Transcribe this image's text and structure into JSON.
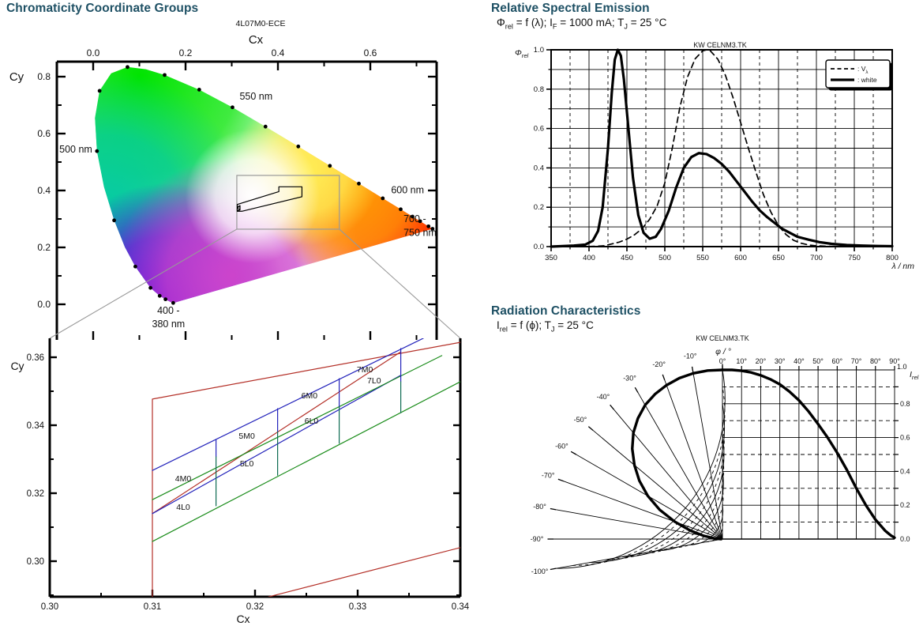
{
  "page": {
    "bg": "#ffffff",
    "heading_color": "#1e5064",
    "watermark_color": "#c6c6c6"
  },
  "sections": {
    "chromaticity": {
      "title": "Chromaticity Coordinate Groups"
    },
    "spectral": {
      "title": "Relative Spectral Emission",
      "formula_parts": [
        [
          "Φ",
          ""
        ],
        [
          "rel",
          "sub"
        ],
        [
          " = f (λ); I",
          ""
        ],
        [
          "F",
          "sub"
        ],
        [
          " = 1000 mA; T",
          ""
        ],
        [
          "J",
          "sub"
        ],
        [
          " = 25 °C",
          ""
        ]
      ]
    },
    "radiation": {
      "title": "Radiation Characteristics",
      "formula_parts": [
        [
          "I",
          ""
        ],
        [
          "rel",
          "sub"
        ],
        [
          " = f (ϕ); T",
          ""
        ],
        [
          "J",
          "sub"
        ],
        [
          " = 25 °C",
          ""
        ]
      ]
    }
  },
  "watermark": "KW CELNM3.TK",
  "chart_data": [
    {
      "id": "cie-diagram",
      "type": "scatter",
      "chart_label": "4L07M0-ECE",
      "xlabel": "Cx",
      "ylabel": "Cy",
      "xlim": [
        -0.079,
        0.744
      ],
      "ylim": [
        -0.125,
        0.852
      ],
      "xticks": {
        "values": [
          0.0,
          0.2,
          0.4,
          0.6
        ],
        "labels": [
          "0.0",
          "0.2",
          "0.4",
          "0.6"
        ]
      },
      "xminor": [
        0.1,
        0.3,
        0.5,
        0.7
      ],
      "yticks": {
        "values": [
          0.0,
          0.2,
          0.4,
          0.6,
          0.8
        ],
        "labels": [
          "0.0",
          "0.2",
          "0.4",
          "0.6",
          "0.8"
        ]
      },
      "yminor": [
        0.1,
        0.3,
        0.5,
        0.7
      ],
      "locus": [
        [
          0.1741,
          0.005
        ],
        [
          0.1733,
          0.0048
        ],
        [
          0.1714,
          0.0051
        ],
        [
          0.1644,
          0.0109
        ],
        [
          0.1566,
          0.0177
        ],
        [
          0.144,
          0.0297
        ],
        [
          0.1241,
          0.0578
        ],
        [
          0.0913,
          0.1327
        ],
        [
          0.0687,
          0.2007
        ],
        [
          0.0454,
          0.295
        ],
        [
          0.0235,
          0.4127
        ],
        [
          0.0082,
          0.5384
        ],
        [
          0.0039,
          0.6548
        ],
        [
          0.0139,
          0.7502
        ],
        [
          0.0389,
          0.812
        ],
        [
          0.0743,
          0.8338
        ],
        [
          0.1142,
          0.8262
        ],
        [
          0.1547,
          0.8059
        ],
        [
          0.2296,
          0.7543
        ],
        [
          0.3016,
          0.6923
        ],
        [
          0.3731,
          0.6245
        ],
        [
          0.4441,
          0.5547
        ],
        [
          0.5125,
          0.4866
        ],
        [
          0.5752,
          0.4242
        ],
        [
          0.627,
          0.3725
        ],
        [
          0.6658,
          0.334
        ],
        [
          0.6915,
          0.3083
        ],
        [
          0.7079,
          0.292
        ],
        [
          0.719,
          0.2809
        ],
        [
          0.726,
          0.274
        ],
        [
          0.7334,
          0.2666
        ],
        [
          0.7347,
          0.2653
        ]
      ],
      "locus_dots": [
        [
          0.1733,
          0.0048
        ],
        [
          0.1566,
          0.0177
        ],
        [
          0.144,
          0.0297
        ],
        [
          0.1241,
          0.0578
        ],
        [
          0.0913,
          0.1327
        ],
        [
          0.0454,
          0.295
        ],
        [
          0.0082,
          0.5384
        ],
        [
          0.0139,
          0.7502
        ],
        [
          0.0743,
          0.8338
        ],
        [
          0.1547,
          0.8059
        ],
        [
          0.2296,
          0.7543
        ],
        [
          0.3016,
          0.6923
        ],
        [
          0.3731,
          0.6245
        ],
        [
          0.4441,
          0.5547
        ],
        [
          0.5125,
          0.4866
        ],
        [
          0.5752,
          0.4242
        ],
        [
          0.627,
          0.3725
        ],
        [
          0.6658,
          0.334
        ],
        [
          0.6915,
          0.3083
        ],
        [
          0.7079,
          0.292
        ],
        [
          0.726,
          0.274
        ],
        [
          0.7347,
          0.2653
        ]
      ],
      "annotations": [
        {
          "text": "550 nm",
          "x": 0.317,
          "y": 0.73,
          "anchor": "start"
        },
        {
          "text": "500 nm",
          "x": -0.002,
          "y": 0.545,
          "anchor": "end"
        },
        {
          "text": "600 nm",
          "x": 0.645,
          "y": 0.402,
          "anchor": "start"
        },
        {
          "text": "700 -",
          "x": 0.672,
          "y": 0.3,
          "anchor": "start"
        },
        {
          "text": "750 nm",
          "x": 0.672,
          "y": 0.252,
          "anchor": "start"
        },
        {
          "text": "400 -",
          "x": 0.163,
          "y": -0.022,
          "anchor": "middle"
        },
        {
          "text": "380 nm",
          "x": 0.163,
          "y": -0.07,
          "anchor": "middle"
        }
      ],
      "zoom_rect": [
        0.311,
        0.264,
        0.533,
        0.453
      ],
      "region_polygon": [
        [
          0.312,
          0.351
        ],
        [
          0.402,
          0.396
        ],
        [
          0.402,
          0.413
        ],
        [
          0.452,
          0.413
        ],
        [
          0.452,
          0.378
        ],
        [
          0.322,
          0.327
        ],
        [
          0.312,
          0.327
        ]
      ],
      "hatch_polygon": [
        [
          0.312,
          0.327
        ],
        [
          0.312,
          0.342
        ],
        [
          0.318,
          0.347
        ],
        [
          0.318,
          0.332
        ]
      ],
      "fill_blobs": [
        {
          "x": 0.1,
          "y": 0.8,
          "r": 0.45,
          "color": "#00e400"
        },
        {
          "x": 0.03,
          "y": 0.32,
          "r": 0.36,
          "color": "#00c9a3"
        },
        {
          "x": 0.16,
          "y": 0.01,
          "r": 0.3,
          "color": "#5500dd"
        },
        {
          "x": 0.3,
          "y": 0.1,
          "r": 0.3,
          "color": "#cc44cc"
        },
        {
          "x": 0.72,
          "y": 0.27,
          "r": 0.32,
          "color": "#ff1a00"
        },
        {
          "x": 0.57,
          "y": 0.4,
          "r": 0.24,
          "color": "#ff9900"
        },
        {
          "x": 0.46,
          "y": 0.47,
          "r": 0.19,
          "color": "#ffee55"
        },
        {
          "x": 0.345,
          "y": 0.38,
          "r": 0.17,
          "color": "#ffffff"
        }
      ]
    },
    {
      "id": "chromaticity-groups",
      "type": "line",
      "xlabel": "Cx",
      "ylabel": "Cy",
      "xlim": [
        0.3,
        0.34
      ],
      "ylim": [
        0.2895,
        0.3655
      ],
      "xticks": {
        "values": [
          0.3,
          0.31,
          0.32,
          0.33,
          0.34
        ],
        "labels": [
          "0.30",
          "0.31",
          "0.32",
          "0.33",
          "0.34"
        ]
      },
      "xminor": [
        0.305,
        0.315,
        0.325,
        0.335
      ],
      "yticks": {
        "values": [
          0.3,
          0.32,
          0.34,
          0.36
        ],
        "labels": [
          "0.30",
          "0.32",
          "0.34",
          "0.36"
        ]
      },
      "yminor": [
        0.29,
        0.31,
        0.33,
        0.35
      ],
      "colors": {
        "red": "#b43028",
        "green": "#1a8c1a",
        "blue": "#2424bb",
        "teal": "#0e6b52"
      },
      "segments": [
        {
          "c": "red",
          "p": [
            [
              0.31,
              0.2895
            ],
            [
              0.31,
              0.3477
            ],
            [
              0.34,
              0.3644
            ]
          ]
        },
        {
          "c": "red",
          "p": [
            [
              0.31,
              0.314
            ],
            [
              0.3342,
              0.3616
            ]
          ]
        },
        {
          "c": "red",
          "p": [
            [
              0.3213,
              0.2895
            ],
            [
              0.34,
              0.304
            ]
          ]
        },
        {
          "c": "blue",
          "p": [
            [
              0.31,
              0.3267
            ],
            [
              0.3364,
              0.3656
            ]
          ]
        },
        {
          "c": "blue",
          "p": [
            [
              0.31,
              0.314
            ],
            [
              0.3342,
              0.3547
            ]
          ]
        },
        {
          "c": "green",
          "p": [
            [
              0.31,
              0.3181
            ],
            [
              0.3382,
              0.3605
            ]
          ]
        },
        {
          "c": "green",
          "p": [
            [
              0.31,
              0.3058
            ],
            [
              0.34,
              0.3528
            ]
          ]
        },
        {
          "c": "blue",
          "p": [
            [
              0.3162,
              0.3358
            ],
            [
              0.3162,
              0.3307
            ]
          ]
        },
        {
          "c": "teal",
          "p": [
            [
              0.3162,
              0.3307
            ],
            [
              0.3162,
              0.3163
            ]
          ]
        },
        {
          "c": "blue",
          "p": [
            [
              0.3222,
              0.3449
            ],
            [
              0.3222,
              0.3381
            ]
          ]
        },
        {
          "c": "teal",
          "p": [
            [
              0.3222,
              0.3381
            ],
            [
              0.3222,
              0.3253
            ]
          ]
        },
        {
          "c": "blue",
          "p": [
            [
              0.3282,
              0.3537
            ],
            [
              0.3282,
              0.3453
            ]
          ]
        },
        {
          "c": "teal",
          "p": [
            [
              0.3282,
              0.3453
            ],
            [
              0.3282,
              0.3347
            ]
          ]
        },
        {
          "c": "blue",
          "p": [
            [
              0.3342,
              0.3626
            ],
            [
              0.3342,
              0.3528
            ]
          ]
        },
        {
          "c": "teal",
          "p": [
            [
              0.3342,
              0.3528
            ],
            [
              0.3342,
              0.3437
            ]
          ]
        }
      ],
      "group_labels": [
        {
          "text": "4M0",
          "x": 0.313,
          "y": 0.3244
        },
        {
          "text": "4L0",
          "x": 0.313,
          "y": 0.316
        },
        {
          "text": "5M0",
          "x": 0.3192,
          "y": 0.337
        },
        {
          "text": "5L0",
          "x": 0.3192,
          "y": 0.3288
        },
        {
          "text": "6M0",
          "x": 0.3253,
          "y": 0.3488
        },
        {
          "text": "6L0",
          "x": 0.3255,
          "y": 0.3414
        },
        {
          "text": "7M0",
          "x": 0.3307,
          "y": 0.3565
        },
        {
          "text": "7L0",
          "x": 0.3316,
          "y": 0.3533
        }
      ]
    },
    {
      "id": "relative-spectral-emission",
      "type": "line",
      "xlabel": "λ / nm",
      "ylabel_parts": [
        [
          "Φ",
          ""
        ],
        [
          "rel",
          "sub"
        ]
      ],
      "xlim": [
        350,
        800
      ],
      "ylim": [
        0,
        1.0
      ],
      "xticks": {
        "values": [
          350,
          400,
          450,
          500,
          550,
          600,
          650,
          700,
          750,
          800
        ],
        "labels": [
          "350",
          "400",
          "450",
          "500",
          "550",
          "600",
          "650",
          "700",
          "750",
          "800"
        ]
      },
      "yticks": {
        "values": [
          0.0,
          0.2,
          0.4,
          0.6,
          0.8,
          1.0
        ],
        "labels": [
          "0.0",
          "0.2",
          "0.4",
          "0.6",
          "0.8",
          "1.0"
        ]
      },
      "grid": {
        "x_solid_step": 50,
        "x_dashed_step": 25,
        "y_solid_step": 0.1
      },
      "legend": [
        {
          "pre": ": V",
          "sub": "λ",
          "style": "dashed"
        },
        {
          "pre": ": white",
          "sub": "",
          "style": "solid"
        }
      ],
      "series": [
        {
          "name": "Vλ",
          "style": "dashed",
          "x": [
            350,
            400,
            420,
            440,
            450,
            460,
            470,
            480,
            490,
            500,
            510,
            520,
            530,
            540,
            550,
            555,
            560,
            570,
            580,
            590,
            600,
            610,
            620,
            630,
            640,
            650,
            660,
            670,
            680,
            690,
            700,
            720,
            750,
            800
          ],
          "y": [
            0,
            0.0004,
            0.004,
            0.023,
            0.038,
            0.06,
            0.091,
            0.139,
            0.208,
            0.323,
            0.503,
            0.71,
            0.862,
            0.954,
            0.995,
            1.0,
            0.995,
            0.952,
            0.87,
            0.757,
            0.631,
            0.503,
            0.381,
            0.265,
            0.175,
            0.107,
            0.061,
            0.032,
            0.017,
            0.0082,
            0.0041,
            0.001,
            0.0001,
            0
          ]
        },
        {
          "name": "white",
          "style": "solid",
          "x": [
            350,
            380,
            395,
            405,
            412,
            418,
            425,
            430,
            434,
            438,
            442,
            446,
            452,
            458,
            465,
            472,
            480,
            488,
            495,
            505,
            515,
            525,
            535,
            545,
            555,
            565,
            575,
            585,
            595,
            605,
            615,
            625,
            635,
            645,
            655,
            665,
            675,
            690,
            705,
            720,
            740,
            760,
            780,
            800
          ],
          "y": [
            0,
            0.005,
            0.01,
            0.03,
            0.08,
            0.2,
            0.5,
            0.78,
            0.95,
            1.0,
            0.97,
            0.85,
            0.6,
            0.35,
            0.16,
            0.07,
            0.04,
            0.05,
            0.09,
            0.18,
            0.3,
            0.4,
            0.455,
            0.475,
            0.47,
            0.45,
            0.42,
            0.38,
            0.33,
            0.28,
            0.23,
            0.185,
            0.15,
            0.12,
            0.09,
            0.07,
            0.05,
            0.035,
            0.022,
            0.014,
            0.008,
            0.005,
            0.003,
            0.002
          ]
        }
      ]
    },
    {
      "id": "radiation-characteristics",
      "type": "line",
      "angle_axis_label": "φ / °",
      "r_axis_label_parts": [
        [
          "I",
          ""
        ],
        [
          "rel",
          "sub"
        ]
      ],
      "r_max_label": "1.0",
      "angle_ticks_pos": {
        "values": [
          0,
          10,
          20,
          30,
          40,
          50,
          60,
          70,
          80,
          90
        ],
        "labels": [
          "0°",
          "10°",
          "20°",
          "30°",
          "40°",
          "50°",
          "60°",
          "70°",
          "80°",
          "90°"
        ]
      },
      "angle_ticks_neg": {
        "values": [
          -10,
          -20,
          -30,
          -40,
          -50,
          -60,
          -70,
          -80,
          -90,
          -100
        ],
        "labels": [
          "-10°",
          "-20°",
          "-30°",
          "-40°",
          "-50°",
          "-60°",
          "-70°",
          "-80°",
          "-90°",
          "-100°"
        ]
      },
      "r_ticks": {
        "values": [
          0.8,
          0.6,
          0.4,
          0.2,
          0.0
        ],
        "labels": [
          "0.8",
          "0.6",
          "0.4",
          "0.2",
          "0.0"
        ]
      },
      "grid": {
        "r_solid": [
          0.2,
          0.4,
          0.6,
          0.8,
          1.0
        ],
        "r_dashed": [
          0.1,
          0.3,
          0.5,
          0.7,
          0.9
        ],
        "angle_step": 10
      },
      "series": {
        "phi": [
          0,
          5,
          10,
          15,
          20,
          25,
          30,
          35,
          40,
          45,
          50,
          55,
          60,
          65,
          70,
          75,
          80,
          85,
          88,
          90
        ],
        "I": [
          1.0,
          1.0,
          0.995,
          0.985,
          0.968,
          0.945,
          0.915,
          0.872,
          0.82,
          0.755,
          0.68,
          0.6,
          0.51,
          0.41,
          0.3,
          0.2,
          0.115,
          0.05,
          0.022,
          0.008
        ]
      }
    }
  ]
}
